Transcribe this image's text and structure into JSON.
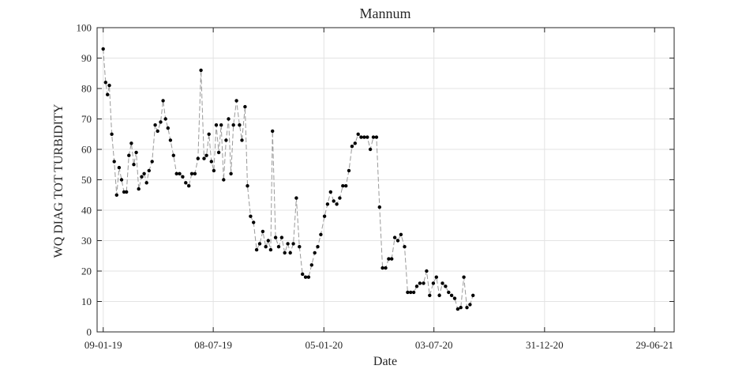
{
  "chart_data": {
    "type": "line",
    "title": "Mannum",
    "xlabel": "Date",
    "ylabel": "WQ DIAG TOT TURBIDITY",
    "ylim": [
      0,
      100
    ],
    "yticks": [
      0,
      10,
      20,
      30,
      40,
      50,
      60,
      70,
      80,
      90,
      100
    ],
    "xlim": [
      "2018-12-30",
      "2021-07-31"
    ],
    "xticks": [
      {
        "date": "2019-01-09",
        "label": "09-01-19"
      },
      {
        "date": "2019-07-08",
        "label": "08-07-19"
      },
      {
        "date": "2020-01-05",
        "label": "05-01-20"
      },
      {
        "date": "2020-07-03",
        "label": "03-07-20"
      },
      {
        "date": "2020-12-31",
        "label": "31-12-20"
      },
      {
        "date": "2021-06-29",
        "label": "29-06-21"
      }
    ],
    "grid": true,
    "line_style": "dashed",
    "line_color": "#9a9a9a",
    "marker_color": "#000000",
    "series": [
      {
        "points": [
          [
            "2019-01-09",
            93
          ],
          [
            "2019-01-13",
            82
          ],
          [
            "2019-01-16",
            78
          ],
          [
            "2019-01-19",
            81
          ],
          [
            "2019-01-23",
            65
          ],
          [
            "2019-01-27",
            56
          ],
          [
            "2019-01-31",
            45
          ],
          [
            "2019-02-04",
            54
          ],
          [
            "2019-02-08",
            50
          ],
          [
            "2019-02-12",
            46
          ],
          [
            "2019-02-16",
            46
          ],
          [
            "2019-02-20",
            58
          ],
          [
            "2019-02-24",
            62
          ],
          [
            "2019-02-28",
            55
          ],
          [
            "2019-03-04",
            59
          ],
          [
            "2019-03-08",
            47
          ],
          [
            "2019-03-13",
            51
          ],
          [
            "2019-03-17",
            52
          ],
          [
            "2019-03-21",
            49
          ],
          [
            "2019-03-25",
            53
          ],
          [
            "2019-03-30",
            56
          ],
          [
            "2019-04-04",
            68
          ],
          [
            "2019-04-08",
            66
          ],
          [
            "2019-04-13",
            69
          ],
          [
            "2019-04-17",
            76
          ],
          [
            "2019-04-21",
            70
          ],
          [
            "2019-04-25",
            67
          ],
          [
            "2019-04-29",
            63
          ],
          [
            "2019-05-04",
            58
          ],
          [
            "2019-05-09",
            52
          ],
          [
            "2019-05-14",
            52
          ],
          [
            "2019-05-19",
            51
          ],
          [
            "2019-05-24",
            49
          ],
          [
            "2019-05-29",
            48
          ],
          [
            "2019-06-03",
            52
          ],
          [
            "2019-06-08",
            52
          ],
          [
            "2019-06-13",
            57
          ],
          [
            "2019-06-18",
            86
          ],
          [
            "2019-06-23",
            57
          ],
          [
            "2019-06-27",
            58
          ],
          [
            "2019-07-01",
            65
          ],
          [
            "2019-07-05",
            56
          ],
          [
            "2019-07-09",
            53
          ],
          [
            "2019-07-13",
            68
          ],
          [
            "2019-07-17",
            59
          ],
          [
            "2019-07-21",
            68
          ],
          [
            "2019-07-25",
            50
          ],
          [
            "2019-07-29",
            63
          ],
          [
            "2019-08-02",
            70
          ],
          [
            "2019-08-06",
            52
          ],
          [
            "2019-08-10",
            68
          ],
          [
            "2019-08-15",
            76
          ],
          [
            "2019-08-20",
            68
          ],
          [
            "2019-08-24",
            63
          ],
          [
            "2019-08-29",
            74
          ],
          [
            "2019-09-02",
            48
          ],
          [
            "2019-09-07",
            38
          ],
          [
            "2019-09-12",
            36
          ],
          [
            "2019-09-17",
            27
          ],
          [
            "2019-09-22",
            29
          ],
          [
            "2019-09-27",
            33
          ],
          [
            "2019-10-02",
            28
          ],
          [
            "2019-10-06",
            30
          ],
          [
            "2019-10-10",
            27
          ],
          [
            "2019-10-13",
            66
          ],
          [
            "2019-10-18",
            31
          ],
          [
            "2019-10-23",
            28
          ],
          [
            "2019-10-28",
            31
          ],
          [
            "2019-11-02",
            26
          ],
          [
            "2019-11-07",
            29
          ],
          [
            "2019-11-11",
            26
          ],
          [
            "2019-11-16",
            29
          ],
          [
            "2019-11-21",
            44
          ],
          [
            "2019-11-26",
            28
          ],
          [
            "2019-12-01",
            19
          ],
          [
            "2019-12-06",
            18
          ],
          [
            "2019-12-11",
            18
          ],
          [
            "2019-12-16",
            22
          ],
          [
            "2019-12-21",
            26
          ],
          [
            "2019-12-26",
            28
          ],
          [
            "2019-12-31",
            32
          ],
          [
            "2020-01-06",
            38
          ],
          [
            "2020-01-11",
            42
          ],
          [
            "2020-01-16",
            46
          ],
          [
            "2020-01-21",
            43
          ],
          [
            "2020-01-26",
            42
          ],
          [
            "2020-01-31",
            44
          ],
          [
            "2020-02-05",
            48
          ],
          [
            "2020-02-10",
            48
          ],
          [
            "2020-02-15",
            53
          ],
          [
            "2020-02-20",
            61
          ],
          [
            "2020-02-25",
            62
          ],
          [
            "2020-03-01",
            65
          ],
          [
            "2020-03-06",
            64
          ],
          [
            "2020-03-11",
            64
          ],
          [
            "2020-03-16",
            64
          ],
          [
            "2020-03-21",
            60
          ],
          [
            "2020-03-26",
            64
          ],
          [
            "2020-03-31",
            64
          ],
          [
            "2020-04-05",
            41
          ],
          [
            "2020-04-10",
            21
          ],
          [
            "2020-04-15",
            21
          ],
          [
            "2020-04-20",
            24
          ],
          [
            "2020-04-25",
            24
          ],
          [
            "2020-04-30",
            31
          ],
          [
            "2020-05-05",
            30
          ],
          [
            "2020-05-10",
            32
          ],
          [
            "2020-05-16",
            28
          ],
          [
            "2020-05-21",
            13
          ],
          [
            "2020-05-26",
            13
          ],
          [
            "2020-05-31",
            13
          ],
          [
            "2020-06-05",
            15
          ],
          [
            "2020-06-10",
            16
          ],
          [
            "2020-06-16",
            16
          ],
          [
            "2020-06-21",
            20
          ],
          [
            "2020-06-26",
            12
          ],
          [
            "2020-07-02",
            16
          ],
          [
            "2020-07-07",
            18
          ],
          [
            "2020-07-12",
            12
          ],
          [
            "2020-07-17",
            16
          ],
          [
            "2020-07-22",
            15
          ],
          [
            "2020-07-27",
            13
          ],
          [
            "2020-08-01",
            12
          ],
          [
            "2020-08-06",
            11
          ],
          [
            "2020-08-11",
            7.5
          ],
          [
            "2020-08-16",
            8
          ],
          [
            "2020-08-21",
            18
          ],
          [
            "2020-08-26",
            8
          ],
          [
            "2020-08-31",
            9
          ],
          [
            "2020-09-05",
            12
          ]
        ]
      }
    ]
  }
}
